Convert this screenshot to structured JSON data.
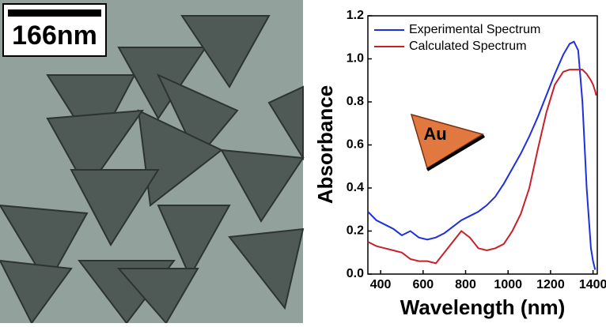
{
  "image": {
    "scale_bar_label": "166nm"
  },
  "chart_data": {
    "type": "line",
    "x_label": "Wavelength (nm)",
    "y_label": "Absorbance",
    "annotation": "Au",
    "x": [
      340,
      380,
      420,
      460,
      500,
      540,
      580,
      620,
      660,
      700,
      740,
      780,
      820,
      860,
      900,
      940,
      980,
      1020,
      1060,
      1100,
      1140,
      1180,
      1220,
      1260,
      1290,
      1310,
      1330,
      1350,
      1370,
      1390,
      1400,
      1410,
      1415
    ],
    "series": [
      {
        "name": "Experimental Spectrum",
        "color": "#1f2fe0",
        "values": [
          0.29,
          0.25,
          0.23,
          0.21,
          0.18,
          0.2,
          0.17,
          0.16,
          0.17,
          0.19,
          0.22,
          0.25,
          0.27,
          0.29,
          0.32,
          0.36,
          0.42,
          0.49,
          0.56,
          0.64,
          0.73,
          0.83,
          0.93,
          1.02,
          1.07,
          1.08,
          1.04,
          0.8,
          0.4,
          0.12,
          0.06,
          0.02,
          null
        ]
      },
      {
        "name": "Calculated Spectrum",
        "color": "#c8202a",
        "values": [
          0.15,
          0.13,
          0.12,
          0.11,
          0.1,
          0.07,
          0.06,
          0.06,
          0.05,
          0.1,
          0.15,
          0.2,
          0.17,
          0.12,
          0.11,
          0.12,
          0.14,
          0.2,
          0.28,
          0.4,
          0.58,
          0.75,
          0.88,
          0.94,
          0.95,
          0.95,
          0.95,
          0.95,
          0.93,
          0.9,
          0.88,
          0.85,
          0.83
        ]
      }
    ],
    "xlim": [
      340,
      1420
    ],
    "ylim": [
      0,
      1.2
    ],
    "xticks": [
      400,
      600,
      800,
      1000,
      1200,
      1400
    ],
    "yticks": [
      {
        "value": 0,
        "label": "0.0"
      },
      0.2,
      0.4,
      0.6,
      0.8,
      {
        "value": 1,
        "label": "1.0"
      },
      1.2
    ],
    "legend": "upper left"
  }
}
